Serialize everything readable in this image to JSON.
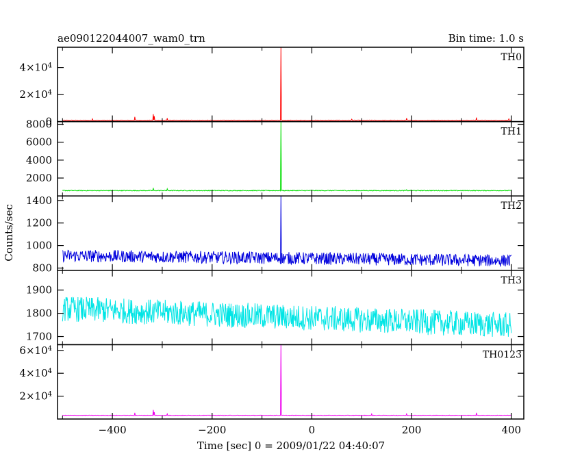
{
  "header": {
    "left_title": "ae090122044007_wam0_trn",
    "right_title": "Bin time: 1.0 s"
  },
  "chart_data": {
    "type": "line",
    "xlabel": "Time [sec] 0 = 2009/01/22 04:40:07",
    "ylabel": "Counts/sec",
    "xlim": [
      -510,
      425
    ],
    "x_ticks": [
      {
        "value": -400,
        "label": "−400"
      },
      {
        "value": -200,
        "label": "−200"
      },
      {
        "value": 0,
        "label": "0"
      },
      {
        "value": 200,
        "label": "200"
      },
      {
        "value": 400,
        "label": "400"
      }
    ],
    "burst_time": -62,
    "data_range": [
      -500,
      400
    ],
    "panels": [
      {
        "name": "TH0",
        "color": "#ff0000",
        "ylim": [
          0,
          55000
        ],
        "y_ticks": [
          {
            "value": 0,
            "label": "0",
            "mantissa": "",
            "exponent": ""
          },
          {
            "value": 20000,
            "label": "",
            "mantissa": "2×10",
            "exponent": "4"
          },
          {
            "value": 40000,
            "label": "",
            "mantissa": "4×10",
            "exponent": "4"
          }
        ],
        "baseline": 1000,
        "noise": 150,
        "trend": 0,
        "peak": 55000,
        "spikes": [
          [
            -355,
            3500
          ],
          [
            -318,
            5500
          ],
          [
            -316,
            4000
          ],
          [
            -290,
            2500
          ],
          [
            -440,
            2000
          ],
          [
            80,
            1800
          ],
          [
            190,
            2500
          ],
          [
            330,
            3000
          ],
          [
            395,
            2000
          ]
        ]
      },
      {
        "name": "TH1",
        "color": "#00dd00",
        "ylim": [
          0,
          8300
        ],
        "y_ticks": [
          {
            "value": 2000,
            "label": "2000"
          },
          {
            "value": 4000,
            "label": "4000"
          },
          {
            "value": 6000,
            "label": "6000"
          },
          {
            "value": 8000,
            "label": "8000"
          }
        ],
        "baseline": 600,
        "noise": 40,
        "trend": 0,
        "peak": 8300,
        "spikes": [
          [
            -318,
            900
          ],
          [
            -290,
            800
          ],
          [
            190,
            700
          ]
        ]
      },
      {
        "name": "TH2",
        "color": "#0000dd",
        "ylim": [
          780,
          1440
        ],
        "y_ticks": [
          {
            "value": 800,
            "label": "800"
          },
          {
            "value": 1000,
            "label": "1000"
          },
          {
            "value": 1200,
            "label": "1200"
          },
          {
            "value": 1400,
            "label": "1400"
          }
        ],
        "baseline": 910,
        "noise": 55,
        "trend": -0.05,
        "peak": 1440,
        "spikes": []
      },
      {
        "name": "TH3",
        "color": "#00e5e5",
        "ylim": [
          1665,
          1985
        ],
        "y_ticks": [
          {
            "value": 1700,
            "label": "1700"
          },
          {
            "value": 1800,
            "label": "1800"
          },
          {
            "value": 1900,
            "label": "1900"
          }
        ],
        "baseline": 1820,
        "noise": 55,
        "trend": -0.08,
        "peak": 1820,
        "spikes": []
      },
      {
        "name": "TH0123",
        "color": "#ee00ee",
        "ylim": [
          0,
          65000
        ],
        "y_ticks": [
          {
            "value": 20000,
            "label": "",
            "mantissa": "2×10",
            "exponent": "4"
          },
          {
            "value": 40000,
            "label": "",
            "mantissa": "4×10",
            "exponent": "4"
          },
          {
            "value": 60000,
            "label": "",
            "mantissa": "6×10",
            "exponent": "4"
          }
        ],
        "baseline": 3200,
        "noise": 200,
        "trend": 0,
        "peak": 65000,
        "spikes": [
          [
            -355,
            5500
          ],
          [
            -318,
            8000
          ],
          [
            -316,
            6000
          ],
          [
            -290,
            4500
          ],
          [
            120,
            4500
          ],
          [
            190,
            4500
          ],
          [
            330,
            5500
          ]
        ]
      }
    ]
  }
}
